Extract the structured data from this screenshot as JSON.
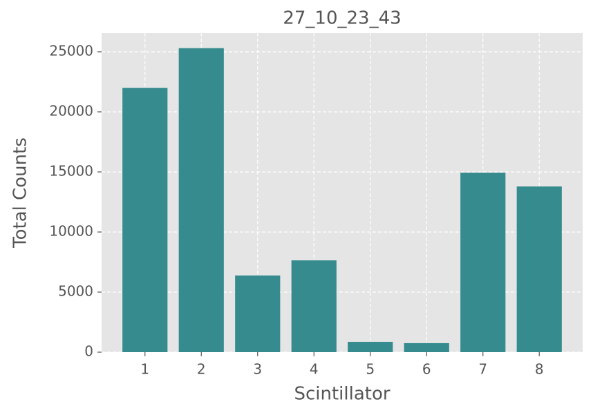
{
  "chart_data": {
    "type": "bar",
    "title": "27_10_23_43",
    "x_label": "Scintillator",
    "y_label": "Total Counts",
    "x": [
      1,
      2,
      3,
      4,
      5,
      6,
      7,
      8
    ],
    "values": [
      22000,
      25300,
      6380,
      7640,
      860,
      750,
      14940,
      13790
    ],
    "color": "#368b8f",
    "bar_width": 0.8,
    "xlim": [
      0.23,
      8.77
    ],
    "xticks": [
      1,
      2,
      3,
      4,
      5,
      6,
      7,
      8
    ],
    "ylim": [
      0,
      26550
    ],
    "yticks": [
      0,
      5000,
      10000,
      15000,
      20000,
      25000
    ],
    "grid": true
  }
}
